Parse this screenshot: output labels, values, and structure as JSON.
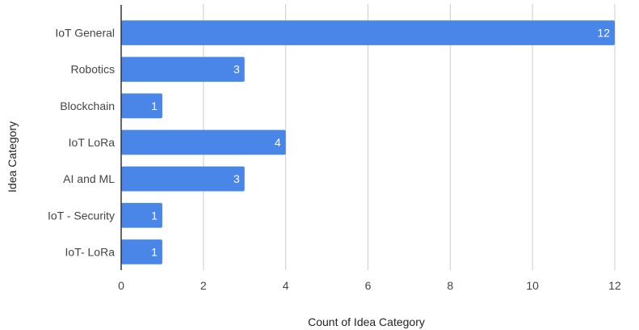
{
  "chart_data": {
    "type": "bar",
    "orientation": "horizontal",
    "categories": [
      "IoT General",
      "Robotics",
      "Blockchain",
      "IoT LoRa",
      "AI and ML",
      "IoT - Security",
      "IoT- LoRa"
    ],
    "values": [
      12,
      3,
      1,
      4,
      3,
      1,
      1
    ],
    "xlabel": "Count of Idea Category",
    "ylabel": "Idea Category",
    "xlim": [
      0,
      12
    ],
    "xticks": [
      0,
      2,
      4,
      6,
      8,
      10,
      12
    ],
    "grid": true,
    "bar_color": "#4a86e8",
    "data_labels": true
  }
}
